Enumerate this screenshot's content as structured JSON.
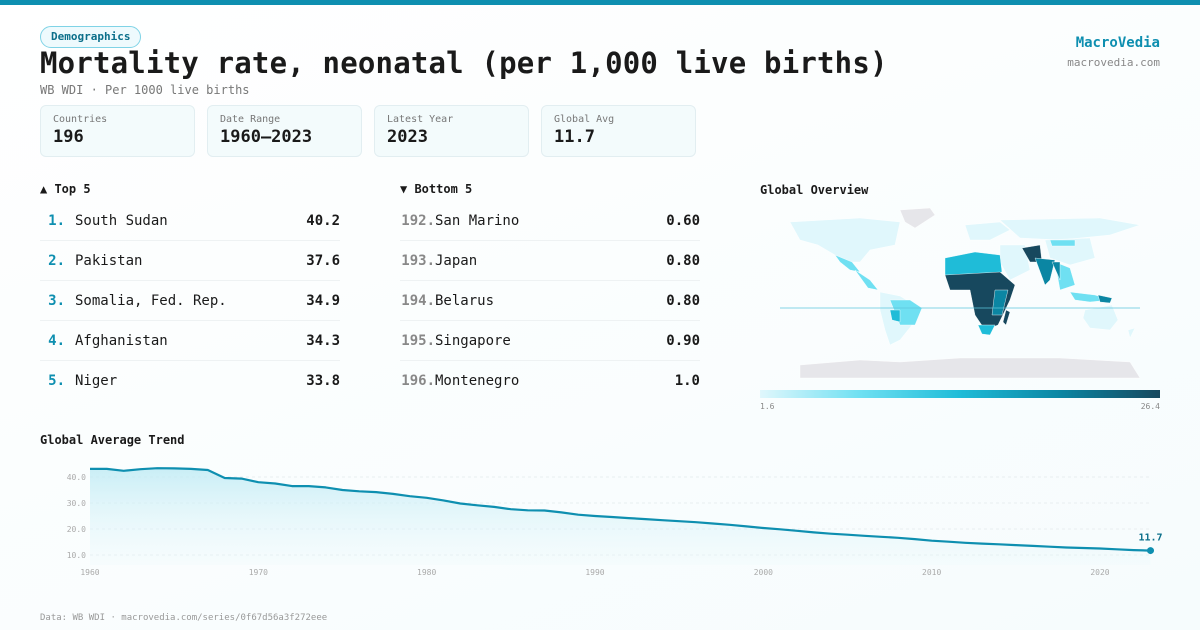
{
  "header": {
    "badge": "Demographics",
    "title": "Mortality rate, neonatal (per 1,000 live births)",
    "subtitle": "WB WDI · Per 1000 live births",
    "brand": "MacroVedia",
    "brand_url": "macrovedia.com"
  },
  "stats": [
    {
      "label": "Countries",
      "value": "196"
    },
    {
      "label": "Date Range",
      "value": "1960–2023"
    },
    {
      "label": "Latest Year",
      "value": "2023"
    },
    {
      "label": "Global Avg",
      "value": "11.7"
    }
  ],
  "top5": {
    "title": "▲ Top 5",
    "items": [
      {
        "rank": "1.",
        "name": "South Sudan",
        "value": "40.2"
      },
      {
        "rank": "2.",
        "name": "Pakistan",
        "value": "37.6"
      },
      {
        "rank": "3.",
        "name": "Somalia, Fed. Rep.",
        "value": "34.9"
      },
      {
        "rank": "4.",
        "name": "Afghanistan",
        "value": "34.3"
      },
      {
        "rank": "5.",
        "name": "Niger",
        "value": "33.8"
      }
    ]
  },
  "bottom5": {
    "title": "▼ Bottom 5",
    "items": [
      {
        "rank": "192.",
        "name": "San Marino",
        "value": "0.60"
      },
      {
        "rank": "193.",
        "name": "Japan",
        "value": "0.80"
      },
      {
        "rank": "194.",
        "name": "Belarus",
        "value": "0.80"
      },
      {
        "rank": "195.",
        "name": "Singapore",
        "value": "0.90"
      },
      {
        "rank": "196.",
        "name": "Montenegro",
        "value": "1.0"
      }
    ]
  },
  "map": {
    "title": "Global Overview",
    "legend_min": "1.6",
    "legend_max": "26.4",
    "colors": [
      "#e0f7fc",
      "#6fe0f2",
      "#1fbcd8",
      "#0b86a3",
      "#17485e"
    ],
    "no_data": "#e6e6ea"
  },
  "footer": "Data: WB WDI · macrovedia.com/series/0f67d56a3f272eee",
  "chart_data": {
    "type": "area",
    "title": "Global Average Trend",
    "ylim": [
      10,
      45
    ],
    "yticks": [
      "10.0",
      "20.0",
      "30.0",
      "40.0"
    ],
    "xticks": [
      "1960",
      "1970",
      "1980",
      "1990",
      "2000",
      "2010",
      "2020"
    ],
    "grid": true,
    "color": "#0e8fb0",
    "end_label": "11.7",
    "x": [
      1960,
      1961,
      1962,
      1963,
      1964,
      1965,
      1966,
      1967,
      1968,
      1969,
      1970,
      1971,
      1972,
      1973,
      1974,
      1975,
      1976,
      1977,
      1978,
      1979,
      1980,
      1981,
      1982,
      1983,
      1984,
      1985,
      1986,
      1987,
      1988,
      1989,
      1990,
      1991,
      1992,
      1993,
      1994,
      1995,
      1996,
      1997,
      1998,
      1999,
      2000,
      2001,
      2002,
      2003,
      2004,
      2005,
      2006,
      2007,
      2008,
      2009,
      2010,
      2011,
      2012,
      2013,
      2014,
      2015,
      2016,
      2017,
      2018,
      2019,
      2020,
      2021,
      2022,
      2023
    ],
    "y": [
      43.1,
      43.1,
      42.4,
      43.0,
      43.4,
      43.3,
      43.1,
      42.7,
      39.6,
      39.4,
      38.0,
      37.5,
      36.5,
      36.5,
      36.0,
      35.0,
      34.5,
      34.2,
      33.5,
      32.6,
      32.0,
      31.0,
      29.8,
      29.1,
      28.5,
      27.6,
      27.2,
      27.1,
      26.4,
      25.5,
      25.0,
      24.6,
      24.2,
      23.8,
      23.4,
      23.0,
      22.6,
      22.1,
      21.6,
      21.0,
      20.4,
      19.9,
      19.3,
      18.7,
      18.2,
      17.8,
      17.4,
      17.0,
      16.6,
      16.1,
      15.5,
      15.1,
      14.7,
      14.4,
      14.1,
      13.8,
      13.5,
      13.2,
      12.9,
      12.7,
      12.5,
      12.2,
      11.9,
      11.7
    ]
  }
}
